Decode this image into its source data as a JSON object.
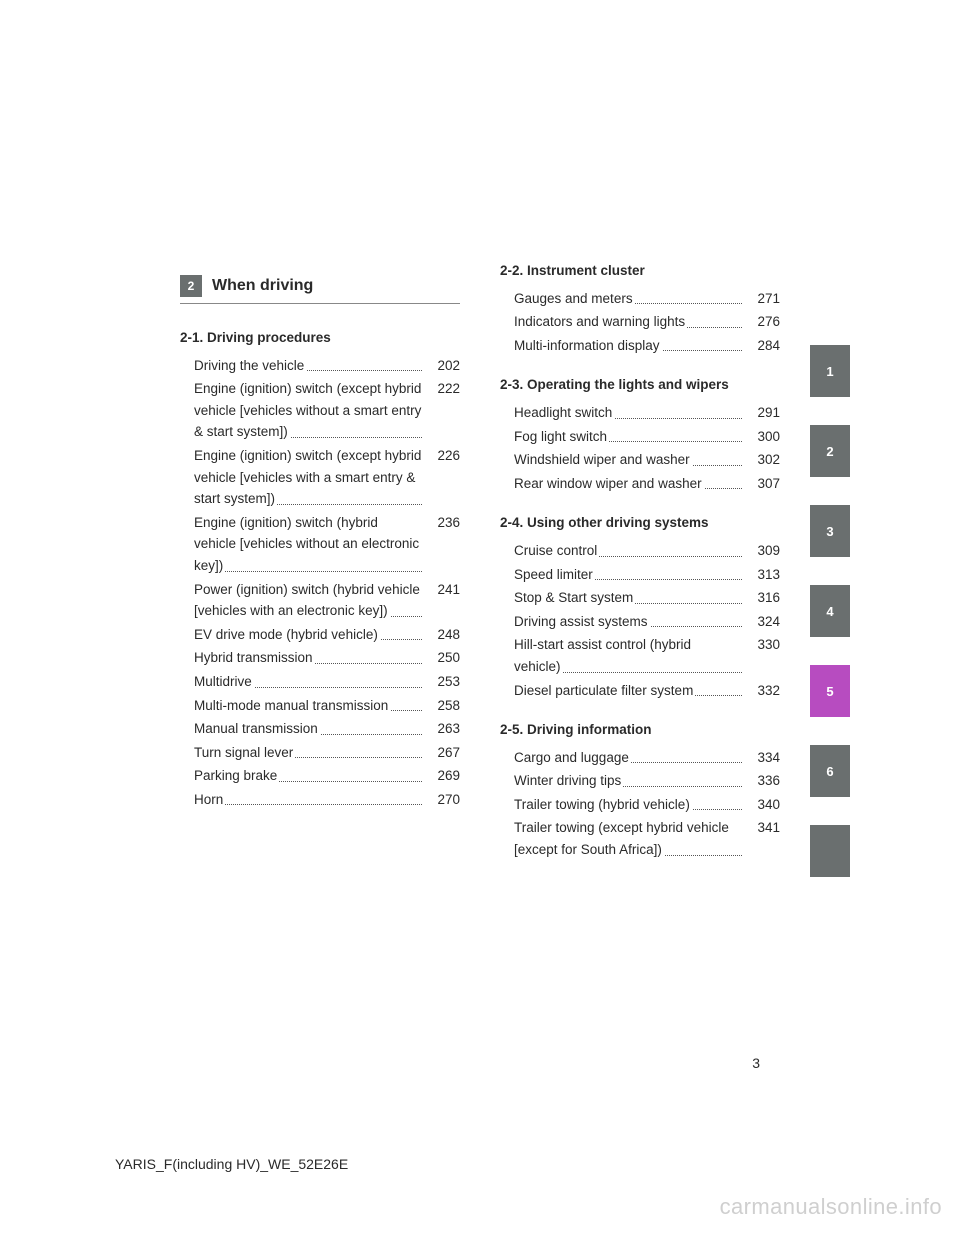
{
  "chapter": {
    "number": "2",
    "title": "When driving"
  },
  "sectionsLeft": [
    {
      "heading": "2-1.  Driving procedures",
      "entries": [
        {
          "text": "Driving the vehicle",
          "page": "202"
        },
        {
          "text": "Engine (ignition) switch (except hybrid vehicle [vehicles without a smart entry & start system])",
          "page": "222"
        },
        {
          "text": "Engine (ignition) switch (except hybrid vehicle [vehicles with a smart entry & start system])",
          "page": "226"
        },
        {
          "text": "Engine (ignition) switch (hybrid vehicle [vehicles without an electronic key])",
          "page": "236"
        },
        {
          "text": "Power (ignition) switch (hybrid vehicle [vehicles with an electronic key])",
          "page": "241"
        },
        {
          "text": "EV drive mode (hybrid vehicle)",
          "page": "248"
        },
        {
          "text": "Hybrid transmission",
          "page": "250"
        },
        {
          "text": "Multidrive",
          "page": "253"
        },
        {
          "text": "Multi-mode manual transmission",
          "page": "258"
        },
        {
          "text": "Manual transmission",
          "page": "263"
        },
        {
          "text": "Turn signal lever",
          "page": "267"
        },
        {
          "text": "Parking brake",
          "page": "269"
        },
        {
          "text": "Horn",
          "page": "270"
        }
      ]
    }
  ],
  "sectionsRight": [
    {
      "heading": "2-2.  Instrument cluster",
      "entries": [
        {
          "text": "Gauges and meters",
          "page": "271"
        },
        {
          "text": "Indicators and warning lights",
          "page": "276"
        },
        {
          "text": "Multi-information display",
          "page": "284"
        }
      ]
    },
    {
      "heading": "2-3.  Operating the lights and wipers",
      "entries": [
        {
          "text": "Headlight switch",
          "page": "291"
        },
        {
          "text": "Fog light switch",
          "page": "300"
        },
        {
          "text": "Windshield wiper and washer",
          "page": "302"
        },
        {
          "text": "Rear window wiper and washer",
          "page": "307"
        }
      ]
    },
    {
      "heading": "2-4.  Using other driving systems",
      "entries": [
        {
          "text": "Cruise control",
          "page": "309"
        },
        {
          "text": "Speed limiter",
          "page": "313"
        },
        {
          "text": "Stop & Start system",
          "page": "316"
        },
        {
          "text": "Driving assist systems",
          "page": "324"
        },
        {
          "text": "Hill-start assist control (hybrid vehicle)",
          "page": "330"
        },
        {
          "text": "Diesel particulate filter system",
          "page": "332"
        }
      ]
    },
    {
      "heading": "2-5.  Driving information",
      "entries": [
        {
          "text": "Cargo and luggage",
          "page": "334"
        },
        {
          "text": "Winter driving tips",
          "page": "336"
        },
        {
          "text": "Trailer towing (hybrid vehicle)",
          "page": "340"
        },
        {
          "text": "Trailer towing (except hybrid vehicle [except for South Africa])",
          "page": "341"
        }
      ]
    }
  ],
  "tabs": [
    {
      "label": "1",
      "variant": "grey"
    },
    {
      "label": "2",
      "variant": "grey"
    },
    {
      "label": "3",
      "variant": "grey"
    },
    {
      "label": "4",
      "variant": "grey"
    },
    {
      "label": "5",
      "variant": "accent"
    },
    {
      "label": "6",
      "variant": "grey"
    },
    {
      "label": "",
      "variant": "grey"
    }
  ],
  "pageNumber": "3",
  "footer": "YARIS_F(including HV)_WE_52E26E",
  "watermark": "carmanualsonline.info",
  "colors": {
    "tab_grey": "#6a6f6f",
    "tab_accent": "#b74cc0",
    "text": "#2a2a2a",
    "watermark": "#cfcfcf"
  }
}
